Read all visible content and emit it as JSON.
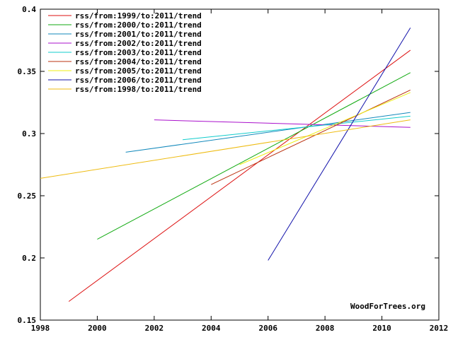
{
  "chart_data": {
    "type": "line",
    "title": "",
    "xlabel": "",
    "ylabel": "",
    "xlim": [
      1998,
      2012
    ],
    "ylim": [
      0.15,
      0.4
    ],
    "x_ticks": [
      "1998",
      "2000",
      "2002",
      "2004",
      "2006",
      "2008",
      "2010",
      "2012"
    ],
    "y_ticks": [
      "0.15",
      "0.2",
      "0.25",
      "0.3",
      "0.35",
      "0.4"
    ],
    "grid": false,
    "legend_position": "top-left",
    "watermark": "WoodForTrees.org",
    "series": [
      {
        "name": "rss/from:1999/to:2011/trend",
        "color": "#dd1111",
        "x": [
          1999,
          2011
        ],
        "y": [
          0.165,
          0.367
        ]
      },
      {
        "name": "rss/from:2000/to:2011/trend",
        "color": "#11aa11",
        "x": [
          2000,
          2011
        ],
        "y": [
          0.215,
          0.349
        ]
      },
      {
        "name": "rss/from:2001/to:2011/trend",
        "color": "#1188bb",
        "x": [
          2001,
          2011
        ],
        "y": [
          0.285,
          0.317
        ]
      },
      {
        "name": "rss/from:2002/to:2011/trend",
        "color": "#aa11cc",
        "x": [
          2002,
          2011
        ],
        "y": [
          0.311,
          0.305
        ]
      },
      {
        "name": "rss/from:2003/to:2011/trend",
        "color": "#11cccc",
        "x": [
          2003,
          2011
        ],
        "y": [
          0.295,
          0.314
        ]
      },
      {
        "name": "rss/from:2004/to:2011/trend",
        "color": "#bb3311",
        "x": [
          2004,
          2011
        ],
        "y": [
          0.259,
          0.335
        ]
      },
      {
        "name": "rss/from:2005/to:2011/trend",
        "color": "#eeee11",
        "x": [
          2005,
          2011
        ],
        "y": [
          0.275,
          0.333
        ]
      },
      {
        "name": "rss/from:2006/to:2011/trend",
        "color": "#1111aa",
        "x": [
          2006,
          2011
        ],
        "y": [
          0.198,
          0.385
        ]
      },
      {
        "name": "rss/from:1998/to:2011/trend",
        "color": "#eebb11",
        "x": [
          1998,
          2011
        ],
        "y": [
          0.264,
          0.311
        ]
      }
    ]
  }
}
